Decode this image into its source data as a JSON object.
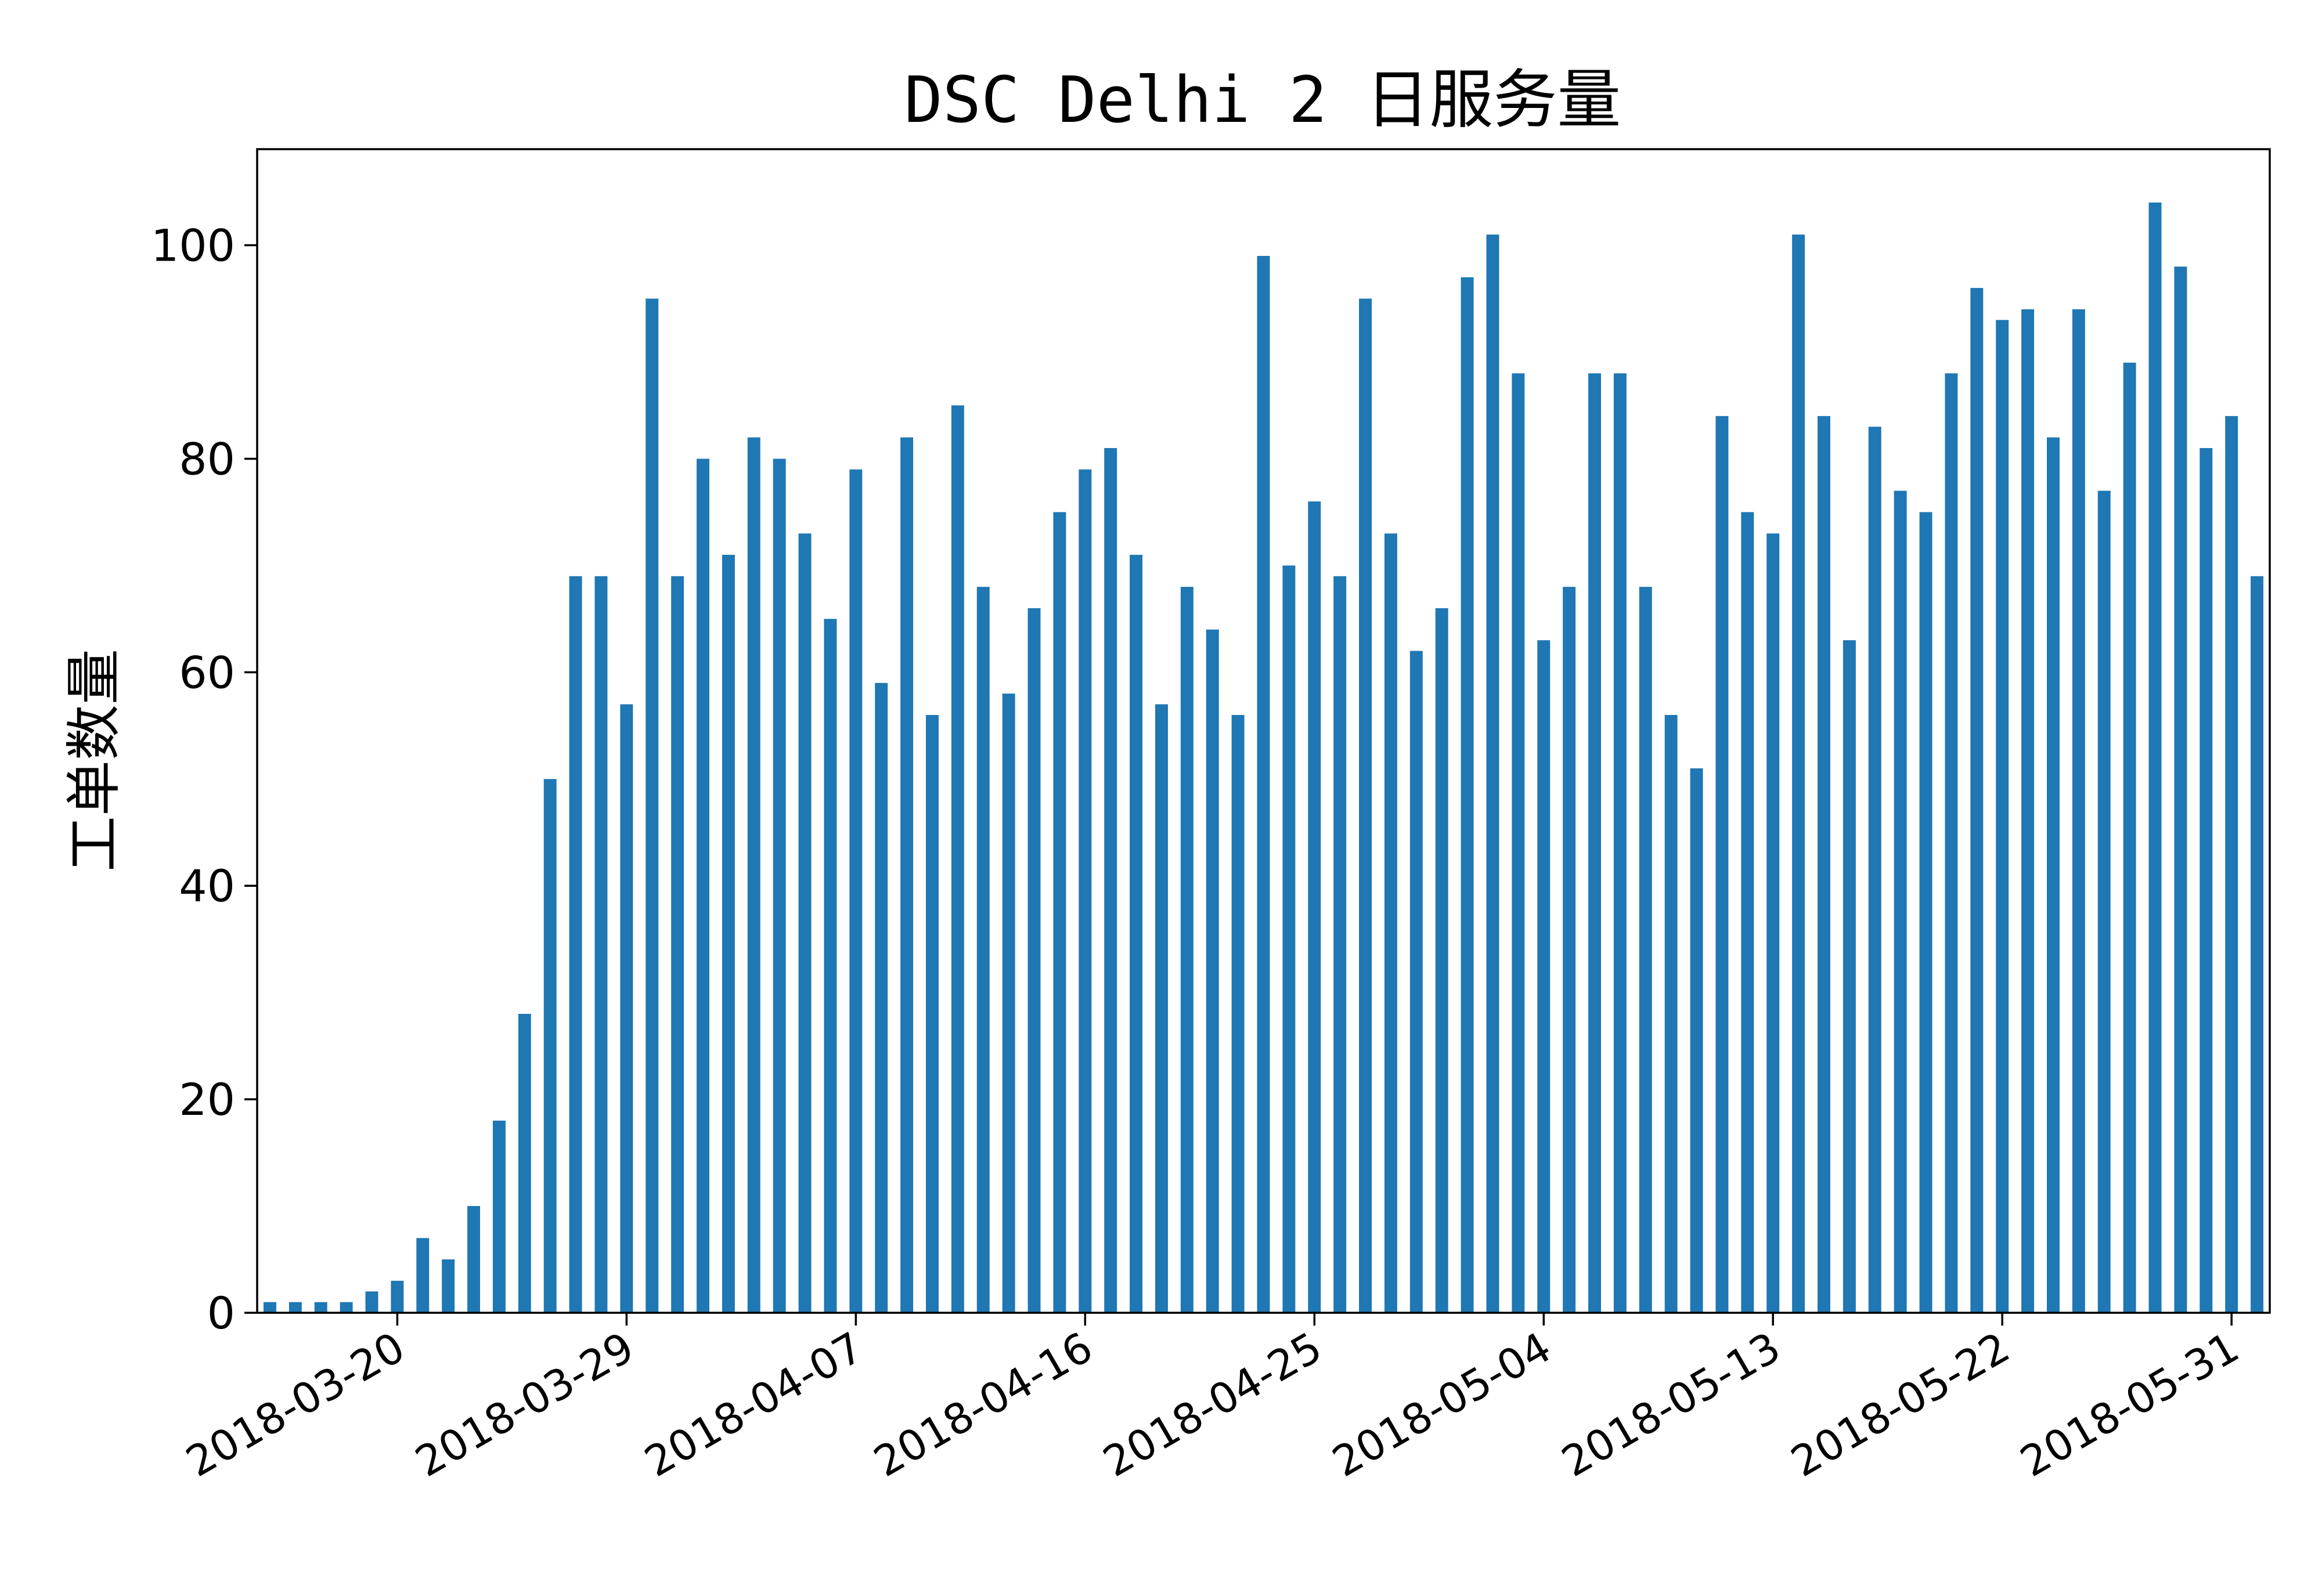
{
  "chart_data": {
    "type": "bar",
    "title": "DSC Delhi 2 日服务量",
    "xlabel": "",
    "ylabel": "工单数量",
    "ylim": [
      0,
      109
    ],
    "color": "#1f77b4",
    "grid": false,
    "categories": [
      "2018-03-15",
      "2018-03-16",
      "2018-03-17",
      "2018-03-18",
      "2018-03-19",
      "2018-03-20",
      "2018-03-21",
      "2018-03-22",
      "2018-03-23",
      "2018-03-24",
      "2018-03-25",
      "2018-03-26",
      "2018-03-27",
      "2018-03-28",
      "2018-03-29",
      "2018-03-30",
      "2018-03-31",
      "2018-04-01",
      "2018-04-02",
      "2018-04-03",
      "2018-04-04",
      "2018-04-05",
      "2018-04-06",
      "2018-04-07",
      "2018-04-08",
      "2018-04-09",
      "2018-04-10",
      "2018-04-11",
      "2018-04-12",
      "2018-04-13",
      "2018-04-14",
      "2018-04-15",
      "2018-04-16",
      "2018-04-17",
      "2018-04-18",
      "2018-04-19",
      "2018-04-20",
      "2018-04-21",
      "2018-04-22",
      "2018-04-23",
      "2018-04-24",
      "2018-04-25",
      "2018-04-26",
      "2018-04-27",
      "2018-04-28",
      "2018-04-29",
      "2018-04-30",
      "2018-05-01",
      "2018-05-02",
      "2018-05-03",
      "2018-05-04",
      "2018-05-05",
      "2018-05-06",
      "2018-05-07",
      "2018-05-08",
      "2018-05-09",
      "2018-05-10",
      "2018-05-11",
      "2018-05-12",
      "2018-05-13",
      "2018-05-14",
      "2018-05-15",
      "2018-05-16",
      "2018-05-17",
      "2018-05-18",
      "2018-05-19",
      "2018-05-20",
      "2018-05-21",
      "2018-05-22",
      "2018-05-23",
      "2018-05-24",
      "2018-05-25",
      "2018-05-26",
      "2018-05-27",
      "2018-05-28",
      "2018-05-29",
      "2018-05-30",
      "2018-05-31",
      "2018-06-01"
    ],
    "values": [
      1,
      1,
      1,
      1,
      2,
      3,
      7,
      5,
      10,
      18,
      28,
      50,
      69,
      69,
      57,
      95,
      69,
      80,
      71,
      82,
      80,
      73,
      65,
      79,
      59,
      82,
      56,
      85,
      68,
      58,
      66,
      75,
      79,
      81,
      71,
      57,
      68,
      64,
      56,
      99,
      70,
      76,
      69,
      95,
      73,
      62,
      66,
      97,
      101,
      88,
      63,
      68,
      88,
      88,
      68,
      56,
      51,
      84,
      75,
      73,
      101,
      84,
      63,
      83,
      77,
      75,
      88,
      96,
      93,
      94,
      82,
      94,
      77,
      89,
      104,
      98,
      81,
      84,
      69
    ],
    "x_tick_labels": [
      "2018-03-20",
      "2018-03-29",
      "2018-04-07",
      "2018-04-16",
      "2018-04-25",
      "2018-05-04",
      "2018-05-13",
      "2018-05-22",
      "2018-05-31"
    ],
    "y_ticks": [
      0,
      20,
      40,
      60,
      80,
      100
    ]
  }
}
